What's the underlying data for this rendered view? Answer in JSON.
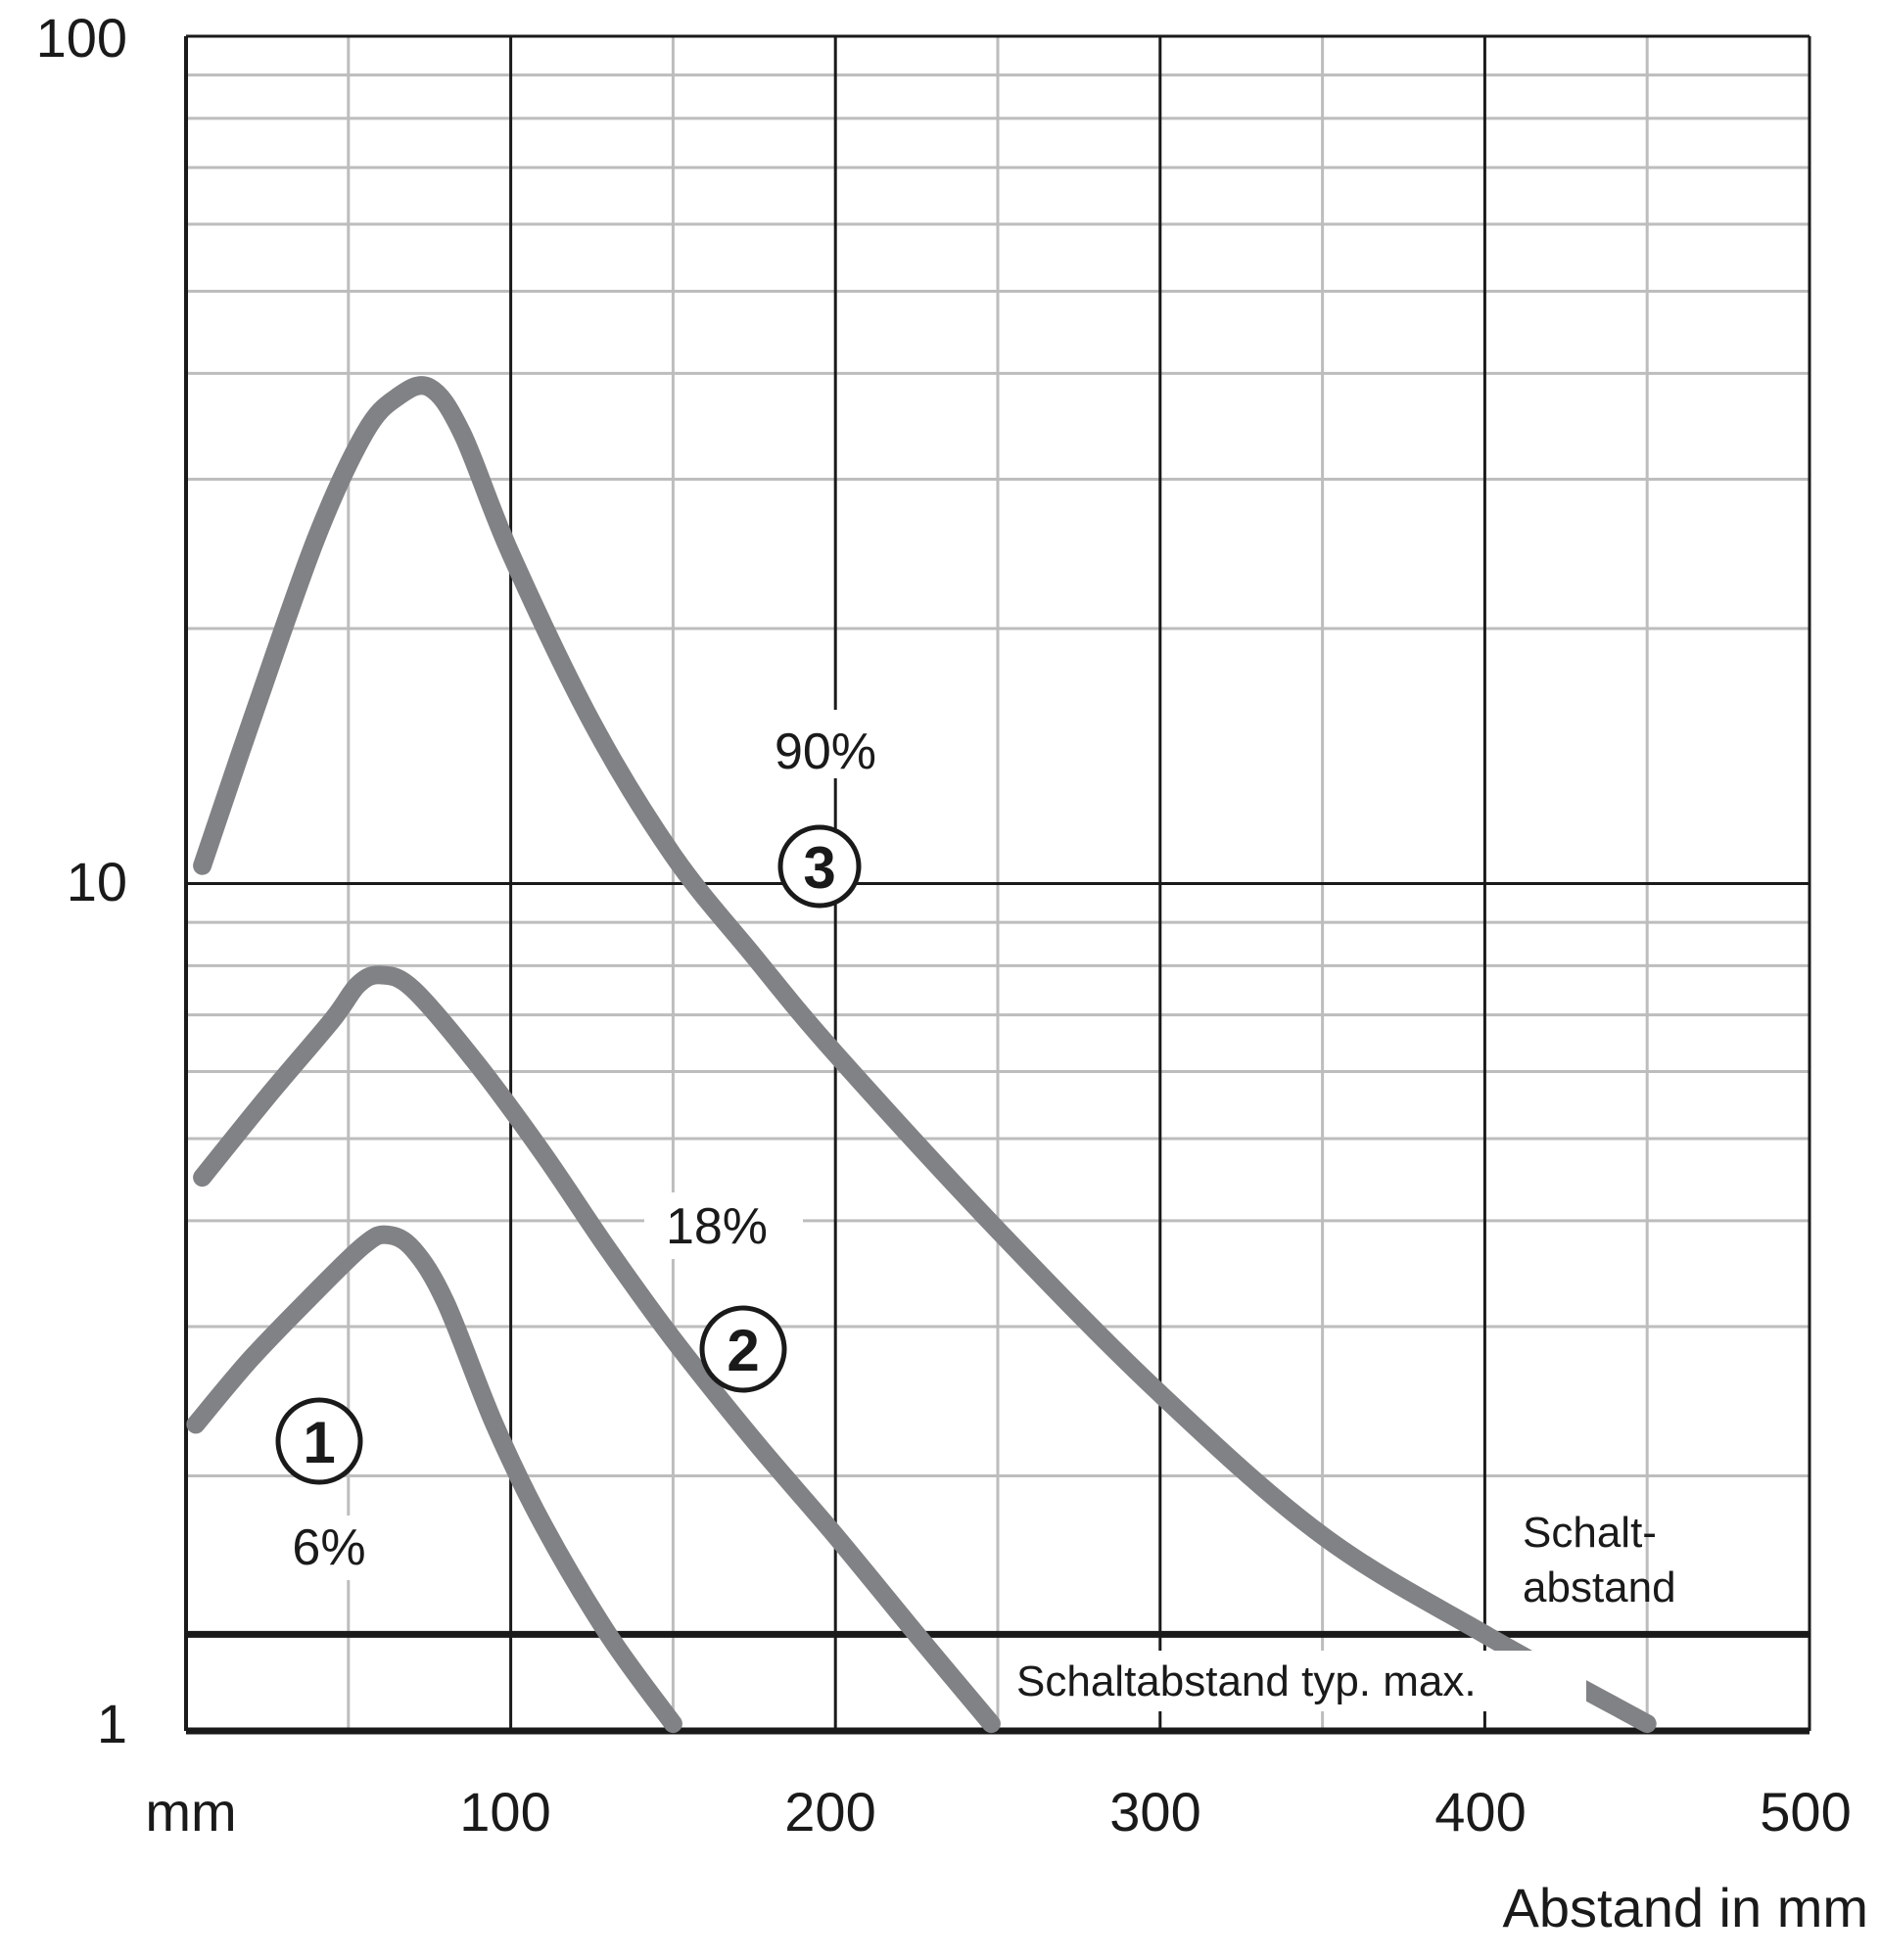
{
  "chart_data": {
    "type": "line",
    "title": "",
    "xlabel": "Abstand in mm",
    "x_unit_label": "mm",
    "ylabel": "",
    "xlim": [
      0,
      500
    ],
    "ylim": [
      1,
      100
    ],
    "yscale": "log",
    "grid": true,
    "x_ticks": [
      100,
      200,
      300,
      400,
      500
    ],
    "x_tick_labels": [
      "100",
      "200",
      "300",
      "400",
      "500"
    ],
    "y_ticks": [
      1,
      10,
      100
    ],
    "y_tick_labels": [
      "1",
      "10",
      "100"
    ],
    "series": [
      {
        "name": "6%",
        "marker": "1",
        "x": [
          3,
          20,
          40,
          55,
          62,
          70,
          80,
          95,
          110,
          130,
          150
        ],
        "y": [
          2.3,
          2.75,
          3.3,
          3.75,
          3.85,
          3.7,
          3.2,
          2.3,
          1.75,
          1.3,
          1.02
        ]
      },
      {
        "name": "18%",
        "marker": "2",
        "x": [
          5,
          25,
          45,
          53,
          60,
          70,
          90,
          110,
          130,
          150,
          175,
          200,
          225,
          248
        ],
        "y": [
          4.5,
          5.6,
          6.9,
          7.6,
          7.8,
          7.5,
          6.1,
          4.8,
          3.7,
          2.9,
          2.2,
          1.7,
          1.3,
          1.02
        ]
      },
      {
        "name": "90%",
        "marker": "3",
        "x": [
          5,
          20,
          40,
          55,
          65,
          75,
          85,
          100,
          125,
          150,
          175,
          200,
          250,
          300,
          350,
          400,
          450
        ],
        "y": [
          10.5,
          15.5,
          25.5,
          34,
          37.5,
          38.5,
          34,
          24.5,
          15.5,
          10.8,
          8.2,
          6.3,
          3.9,
          2.5,
          1.7,
          1.3,
          1.02
        ]
      }
    ],
    "annotations": {
      "label_1": "6%",
      "label_2": "18%",
      "label_3": "90%",
      "marker_1": "1",
      "marker_2": "2",
      "marker_3": "3",
      "threshold_value": 1.3,
      "threshold_label_line1": "Schalt-",
      "threshold_label_line2": "abstand",
      "max_label": "Schaltabstand typ. max."
    }
  },
  "colors": {
    "curve": "#818285",
    "major_grid": "#1a1a1a",
    "minor_grid": "#bdbdbd",
    "text": "#1a1a1a"
  }
}
